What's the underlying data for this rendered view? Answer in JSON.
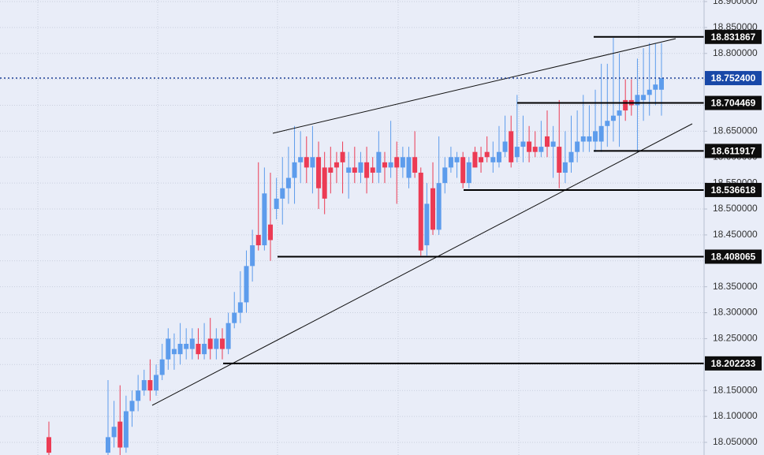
{
  "chart_data": {
    "type": "candlestick",
    "up_color": "#5d9cec",
    "down_color": "#ec3b54",
    "grid": true,
    "ylim": [
      18.0256,
      18.903
    ],
    "yticks": [
      {
        "value": 18.9,
        "label": "18.900000"
      },
      {
        "value": 18.85,
        "label": "18.850000"
      },
      {
        "value": 18.8,
        "label": "18.800000"
      },
      {
        "value": 18.75,
        "label": "18.750000"
      },
      {
        "value": 18.7,
        "label": "18.700000"
      },
      {
        "value": 18.65,
        "label": "18.650000"
      },
      {
        "value": 18.6,
        "label": "18.600000"
      },
      {
        "value": 18.55,
        "label": "18.550000"
      },
      {
        "value": 18.5,
        "label": "18.500000"
      },
      {
        "value": 18.45,
        "label": "18.450000"
      },
      {
        "value": 18.4,
        "label": "18.400000"
      },
      {
        "value": 18.35,
        "label": "18.350000"
      },
      {
        "value": 18.3,
        "label": "18.300000"
      },
      {
        "value": 18.25,
        "label": "18.250000"
      },
      {
        "value": 18.2,
        "label": "18.200000"
      },
      {
        "value": 18.15,
        "label": "18.150000"
      },
      {
        "value": 18.1,
        "label": "18.100000"
      },
      {
        "value": 18.05,
        "label": "18.050000"
      }
    ],
    "levels": [
      18.831867,
      18.704469,
      18.611917,
      18.536618,
      18.408065,
      18.202233
    ],
    "last_price": {
      "value": 18.7524,
      "label": "18.752400"
    },
    "open": [
      18.06,
      18.03,
      18.06,
      18.09,
      18.04,
      18.11,
      18.13,
      18.15,
      18.17,
      18.15,
      18.18,
      18.21,
      18.22,
      18.22,
      18.23,
      18.23,
      18.24,
      18.22,
      18.25,
      18.23,
      18.25,
      18.23,
      18.28,
      18.3,
      18.32,
      18.39,
      18.45,
      18.43,
      18.47,
      18.5,
      18.52,
      18.54,
      18.56,
      18.59,
      18.6,
      18.58,
      18.6,
      18.58,
      18.58,
      18.59,
      18.61,
      18.57,
      18.58,
      18.57,
      18.59,
      18.58,
      18.57,
      18.59,
      18.58,
      18.6,
      18.58,
      18.56,
      18.6,
      18.57,
      18.43,
      18.54,
      18.46,
      18.55,
      18.58,
      18.59,
      18.6,
      18.55,
      18.61,
      18.6,
      18.61,
      18.59,
      18.59,
      18.61,
      18.65,
      18.6,
      18.62,
      18.63,
      18.62,
      18.61,
      18.64,
      18.62,
      18.62,
      18.57,
      18.59,
      18.61,
      18.63,
      18.63,
      18.63,
      18.63,
      18.66,
      18.67,
      18.68,
      18.71,
      18.71,
      18.7,
      18.71,
      18.72,
      18.73,
      18.73
    ],
    "high": [
      18.09,
      18.17,
      18.13,
      18.16,
      18.14,
      18.15,
      18.18,
      18.19,
      18.21,
      18.2,
      18.24,
      18.27,
      18.26,
      18.28,
      18.27,
      18.27,
      18.27,
      18.28,
      18.29,
      18.27,
      18.27,
      18.3,
      18.34,
      18.38,
      18.42,
      18.46,
      18.59,
      18.58,
      18.57,
      18.56,
      18.6,
      18.62,
      18.66,
      18.65,
      18.64,
      18.66,
      18.63,
      18.61,
      18.62,
      18.61,
      18.63,
      18.61,
      18.62,
      18.61,
      18.62,
      18.6,
      18.65,
      18.61,
      18.67,
      18.63,
      18.62,
      18.62,
      18.65,
      18.58,
      18.55,
      18.59,
      18.64,
      18.6,
      18.62,
      18.61,
      18.61,
      18.6,
      18.62,
      18.62,
      18.64,
      18.63,
      18.66,
      18.68,
      18.68,
      18.72,
      18.68,
      18.66,
      18.65,
      18.67,
      18.69,
      18.66,
      18.71,
      18.65,
      18.68,
      18.69,
      18.72,
      18.7,
      18.73,
      18.78,
      18.78,
      18.83,
      18.8,
      18.75,
      18.75,
      18.79,
      18.81,
      18.82,
      18.82,
      18.82
    ],
    "low": [
      18.02,
      18.02,
      18.04,
      18.02,
      18.03,
      18.08,
      18.11,
      18.14,
      18.13,
      18.14,
      18.17,
      18.19,
      18.19,
      18.2,
      18.21,
      18.21,
      18.21,
      18.21,
      18.21,
      18.21,
      18.21,
      18.22,
      18.27,
      18.28,
      18.3,
      18.36,
      18.42,
      18.42,
      18.4,
      18.48,
      18.47,
      18.51,
      18.51,
      18.55,
      18.55,
      18.53,
      18.5,
      18.49,
      18.53,
      18.55,
      18.53,
      18.52,
      18.55,
      18.55,
      18.53,
      18.55,
      18.55,
      18.55,
      18.56,
      18.51,
      18.56,
      18.54,
      18.56,
      18.41,
      18.41,
      18.45,
      18.45,
      18.53,
      18.57,
      18.56,
      18.54,
      18.54,
      18.58,
      18.57,
      18.59,
      18.57,
      18.58,
      18.6,
      18.58,
      18.59,
      18.59,
      18.59,
      18.6,
      18.6,
      18.6,
      18.56,
      18.54,
      18.55,
      18.57,
      18.59,
      18.61,
      18.61,
      18.61,
      18.61,
      18.62,
      18.63,
      18.62,
      18.67,
      18.68,
      18.61,
      18.67,
      18.68,
      18.7,
      18.68
    ],
    "close": [
      18.03,
      18.06,
      18.08,
      18.04,
      18.11,
      18.13,
      18.15,
      18.17,
      18.15,
      18.18,
      18.21,
      18.25,
      18.23,
      18.24,
      18.24,
      18.25,
      18.22,
      18.24,
      18.23,
      18.25,
      18.23,
      18.28,
      18.3,
      18.32,
      18.39,
      18.43,
      18.43,
      18.53,
      18.44,
      18.52,
      18.54,
      18.56,
      18.59,
      18.6,
      18.58,
      18.6,
      18.54,
      18.52,
      18.57,
      18.58,
      18.59,
      18.58,
      18.57,
      18.59,
      18.56,
      18.57,
      18.61,
      18.58,
      18.59,
      18.58,
      18.6,
      18.6,
      18.57,
      18.42,
      18.51,
      18.46,
      18.55,
      18.58,
      18.6,
      18.6,
      18.55,
      18.59,
      18.58,
      18.59,
      18.6,
      18.6,
      18.61,
      18.63,
      18.59,
      18.62,
      18.63,
      18.61,
      18.61,
      18.62,
      18.62,
      18.63,
      18.57,
      18.59,
      18.61,
      18.63,
      18.64,
      18.64,
      18.65,
      18.66,
      18.67,
      18.68,
      18.69,
      18.69,
      18.7,
      18.72,
      18.72,
      18.73,
      18.74,
      18.7524
    ]
  }
}
